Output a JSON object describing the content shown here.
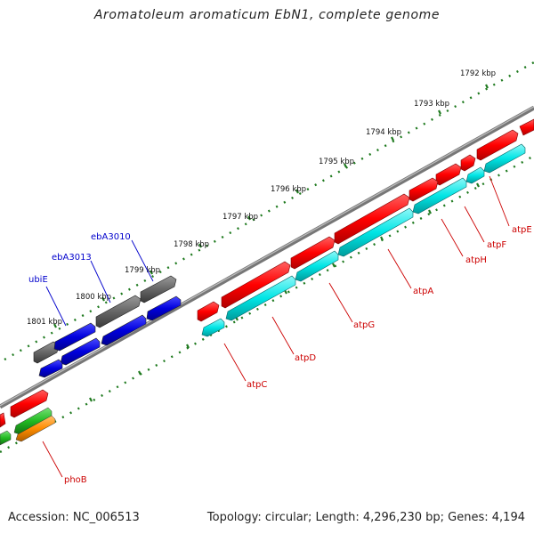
{
  "title": "Aromatoleum aromaticum EbN1, complete genome",
  "accession": "Accession: NC_006513",
  "summary": "Topology: circular; Length: 4,296,230 bp; Genes: 4,194",
  "colors": {
    "background": "#ffffff",
    "backbone": "#7a7a7a",
    "scale_dots": "#1f7a1f",
    "forward_gene": "#ff0000",
    "reverse_gene": "#00e5e5",
    "gray_gene": "#666666",
    "blue_gene": "#0000dd",
    "green_gene": "#22bb22",
    "orange_gene": "#ff8c00",
    "label_red": "#cc0000",
    "label_blue": "#0000cc"
  },
  "scale_labels": [
    "1792 kbp",
    "1793 kbp",
    "1794 kbp",
    "1795 kbp",
    "1796 kbp",
    "1797 kbp",
    "1798 kbp",
    "1799 kbp",
    "1800 kbp",
    "1801 kbp"
  ],
  "gene_labels": [
    {
      "name": "ebA3010",
      "color": "blue"
    },
    {
      "name": "ebA3013",
      "color": "blue"
    },
    {
      "name": "ubiE",
      "color": "blue"
    },
    {
      "name": "atpE",
      "color": "red"
    },
    {
      "name": "atpF",
      "color": "red"
    },
    {
      "name": "atpH",
      "color": "red"
    },
    {
      "name": "atpA",
      "color": "red"
    },
    {
      "name": "atpG",
      "color": "red"
    },
    {
      "name": "atpD",
      "color": "red"
    },
    {
      "name": "atpC",
      "color": "red"
    },
    {
      "name": "phoB",
      "color": "red"
    }
  ]
}
